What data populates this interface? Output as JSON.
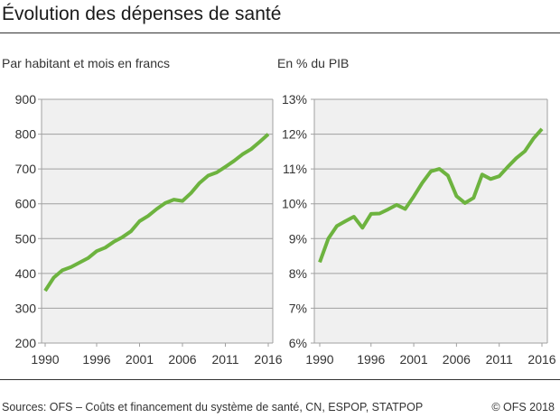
{
  "title": "Évolution des dépenses de santé",
  "footer": {
    "source": "Sources: OFS – Coûts et financement du système de santé, CN, ESPOP, STATPOP",
    "copyright": "© OFS 2018"
  },
  "colors": {
    "line": "#6db33f",
    "plot_bg": "#f0f0f0",
    "grid": "#a0a0a0"
  },
  "chart_data": [
    {
      "type": "line",
      "subtitle": "Par habitant et mois en francs",
      "x": [
        1990,
        1991,
        1992,
        1993,
        1994,
        1995,
        1996,
        1997,
        1998,
        1999,
        2000,
        2001,
        2002,
        2003,
        2004,
        2005,
        2006,
        2007,
        2008,
        2009,
        2010,
        2011,
        2012,
        2013,
        2014,
        2015,
        2016
      ],
      "values": [
        350,
        388,
        409,
        418,
        431,
        444,
        464,
        474,
        491,
        504,
        521,
        550,
        565,
        585,
        602,
        612,
        608,
        631,
        660,
        681,
        690,
        706,
        723,
        742,
        757,
        778,
        800
      ],
      "ylim": [
        200,
        900
      ],
      "yticks": [
        "900",
        "800",
        "700",
        "600",
        "500",
        "400",
        "300",
        "200"
      ],
      "ytick_values": [
        900,
        800,
        700,
        600,
        500,
        400,
        300,
        200
      ],
      "xticks": [
        "1990",
        "1996",
        "2001",
        "2006",
        "2011",
        "2016"
      ],
      "xtick_values": [
        1990,
        1996,
        2001,
        2006,
        2011,
        2016
      ],
      "grid": true
    },
    {
      "type": "line",
      "subtitle": "En % du PIB",
      "x": [
        1990,
        1991,
        1992,
        1993,
        1994,
        1995,
        1996,
        1997,
        1998,
        1999,
        2000,
        2001,
        2002,
        2003,
        2004,
        2005,
        2006,
        2007,
        2008,
        2009,
        2010,
        2011,
        2012,
        2013,
        2014,
        2015,
        2016
      ],
      "values": [
        8.32,
        9.0,
        9.36,
        9.5,
        9.63,
        9.31,
        9.71,
        9.72,
        9.84,
        9.97,
        9.85,
        10.21,
        10.6,
        10.93,
        11.0,
        10.81,
        10.22,
        10.02,
        10.17,
        10.84,
        10.71,
        10.79,
        11.06,
        11.31,
        11.51,
        11.87,
        12.15
      ],
      "ylim": [
        6,
        13
      ],
      "yticks": [
        "13%",
        "12%",
        "11%",
        "10%",
        "9%",
        "8%",
        "7%",
        "6%"
      ],
      "ytick_values": [
        13,
        12,
        11,
        10,
        9,
        8,
        7,
        6
      ],
      "xticks": [
        "1990",
        "1996",
        "2001",
        "2006",
        "2011",
        "2016"
      ],
      "xtick_values": [
        1990,
        1996,
        2001,
        2006,
        2011,
        2016
      ],
      "grid": true
    }
  ]
}
